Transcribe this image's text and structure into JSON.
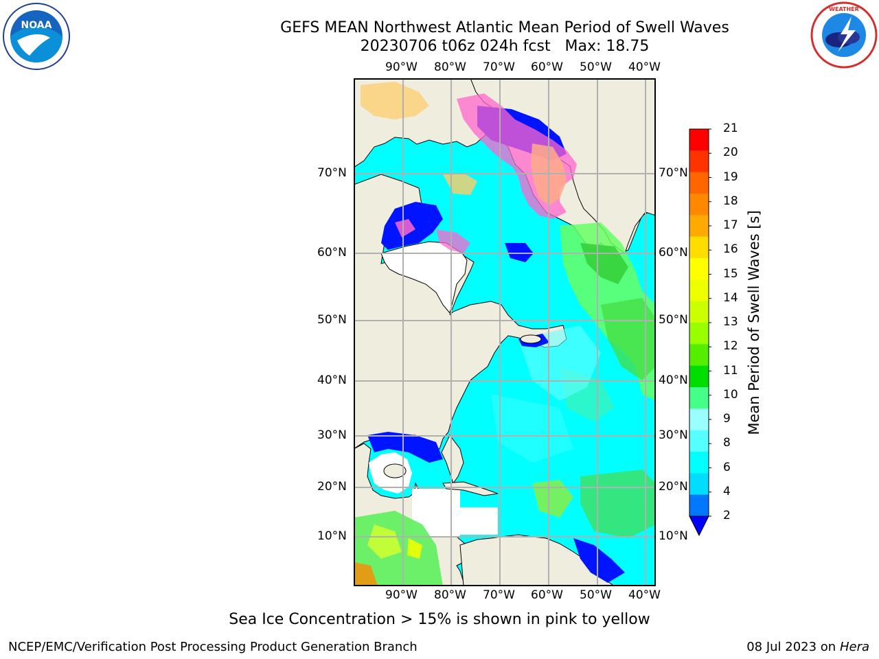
{
  "title": {
    "line1": "GEFS MEAN Northwest Atlantic Mean Period of Swell Waves",
    "line2": "20230706 t06z 024h fcst   Max: 18.75"
  },
  "logos": {
    "left": {
      "name": "noaa-logo",
      "text": "NOAA",
      "ring_text": "NATIONAL OCEANIC AND ATMOSPHERIC ADMINISTRATION · U.S. DEPARTMENT OF COMMERCE"
    },
    "right": {
      "name": "nws-logo",
      "ring_text": "NATIONAL WEATHER SERVICE"
    }
  },
  "map": {
    "lon_labels": [
      "90°W",
      "80°W",
      "70°W",
      "60°W",
      "50°W",
      "40°W"
    ],
    "lat_labels": [
      "70°N",
      "60°N",
      "50°N",
      "40°N",
      "30°N",
      "20°N",
      "10°N"
    ],
    "colors": {
      "land": "#efedde",
      "ocean_main": "#00ffff",
      "ocean_light": "#66ffff",
      "green": "#4cd964",
      "blue": "#0014ff",
      "ice_pink": "#ff66cc",
      "ice_orange": "#ffb347",
      "grid": "#b0b0b0"
    }
  },
  "colorbar": {
    "title": "Mean Period of Swell Waves [s]",
    "ticks": [
      "21",
      "20",
      "19",
      "18",
      "17",
      "16",
      "15",
      "14",
      "13",
      "12",
      "11",
      "10",
      "9",
      "8",
      "6",
      "4",
      "2"
    ],
    "colors": [
      "#ff0000",
      "#ff3300",
      "#ff6600",
      "#ff8800",
      "#ffaa00",
      "#ffdd00",
      "#ffff00",
      "#eeff00",
      "#ccff00",
      "#99ff00",
      "#55ee00",
      "#00dd00",
      "#44ff88",
      "#99ffff",
      "#55ffff",
      "#00ffff",
      "#00ddff",
      "#0077ff"
    ],
    "under_color": "#0000ff"
  },
  "note": "Sea Ice Concentration > 15% is shown in pink to yellow",
  "footer": {
    "left": "NCEP/EMC/Verification Post Processing Product Generation Branch",
    "right_date": "08 Jul 2023 on",
    "right_host": "Hera"
  }
}
